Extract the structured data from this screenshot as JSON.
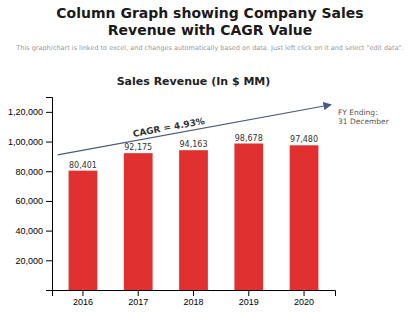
{
  "chart_data": {
    "type": "bar",
    "title": "Column Graph showing Company Sales\nRevenue with CAGR Value",
    "subtitle": "This graph/chart is linked to excel, and changes automatically based on data. Just left click on it and select \"edit data\".",
    "annotations": [
      "Sales Revenue (In $ MM)",
      "CAGR = 4.93%",
      "FY Ending:\n31 December"
    ],
    "categories": [
      "2016",
      "2017",
      "2018",
      "2019",
      "2020"
    ],
    "values": [
      80401,
      92175,
      94163,
      98678,
      97480
    ],
    "value_labels": [
      "80,401",
      "92,175",
      "94,163",
      "98,678",
      "97,480"
    ],
    "data_labels": true,
    "color": "#e03030",
    "ylim": [
      0,
      130000
    ],
    "yticks": [
      {
        "value": 0,
        "label": ""
      },
      {
        "value": 20000,
        "label": "20,000"
      },
      {
        "value": 40000,
        "label": "40,000"
      },
      {
        "value": 60000,
        "label": "60,000"
      },
      {
        "value": 80000,
        "label": "80,000"
      },
      {
        "value": 100000,
        "label": "1,00,000"
      },
      {
        "value": 120000,
        "label": "1,20,000"
      }
    ],
    "grid": false
  }
}
